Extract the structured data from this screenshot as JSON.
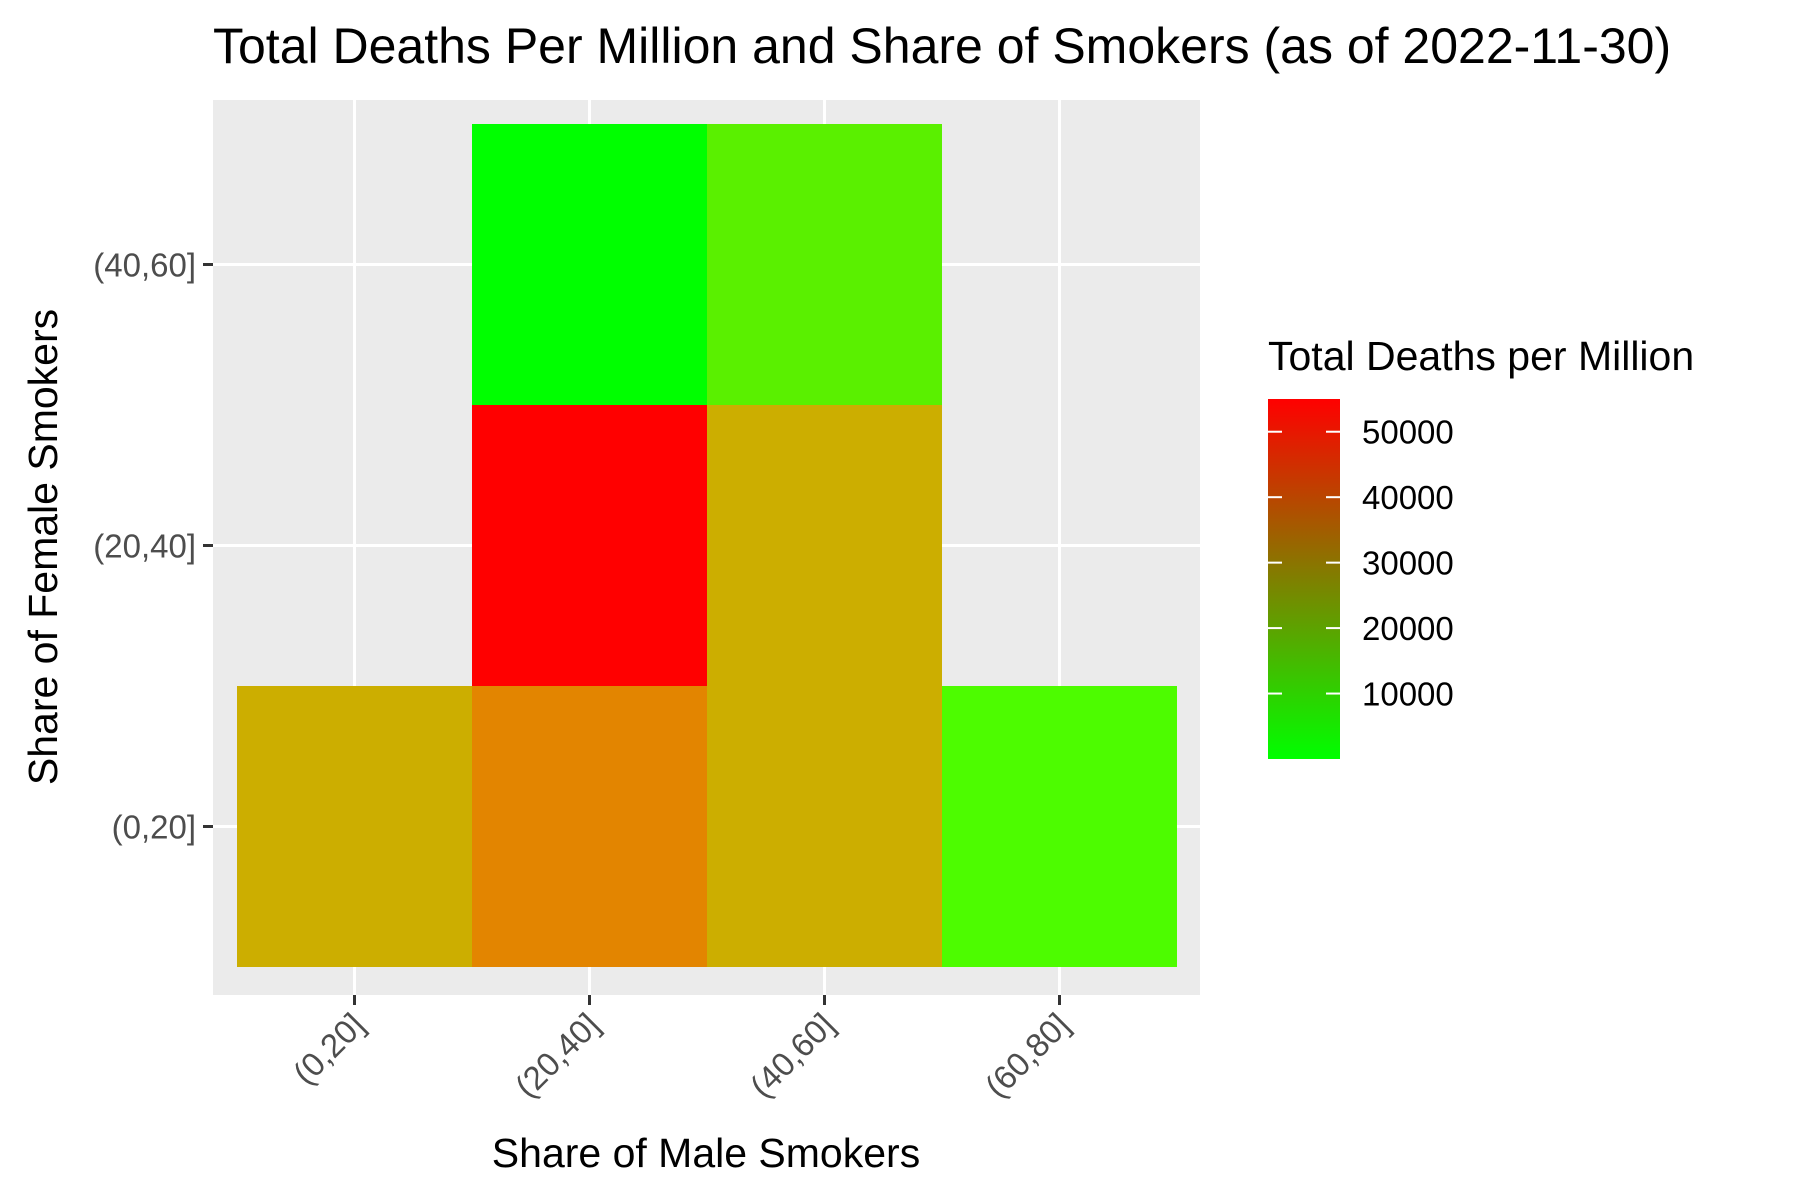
{
  "chart_data": {
    "type": "heatmap",
    "title": "Total Deaths Per Million and Share of Smokers (as of 2022-11-30)",
    "xlabel": "Share of Male Smokers",
    "ylabel": "Share of Female Smokers",
    "x_categories": [
      "(0,20]",
      "(20,40]",
      "(40,60]",
      "(60,80]"
    ],
    "y_categories": [
      "(0,20]",
      "(20,40]",
      "(40,60]"
    ],
    "cells": [
      {
        "x": "(0,20]",
        "y": "(0,20]",
        "value": 30000,
        "color": "#CCAE00"
      },
      {
        "x": "(20,40]",
        "y": "(0,20]",
        "value": 42500,
        "color": "#E38500"
      },
      {
        "x": "(40,60]",
        "y": "(0,20]",
        "value": 30000,
        "color": "#CCAE00"
      },
      {
        "x": "(60,80]",
        "y": "(0,20]",
        "value": 2000,
        "color": "#4DFC00"
      },
      {
        "x": "(20,40]",
        "y": "(20,40]",
        "value": 55000,
        "color": "#FF0000"
      },
      {
        "x": "(40,60]",
        "y": "(20,40]",
        "value": 30000,
        "color": "#CCAE00"
      },
      {
        "x": "(20,40]",
        "y": "(40,60]",
        "value": 0,
        "color": "#00FF00"
      },
      {
        "x": "(40,60]",
        "y": "(40,60]",
        "value": 5000,
        "color": "#5AF000"
      }
    ],
    "legend": {
      "title": "Total Deaths per Million",
      "position": "right",
      "min": 0,
      "max": 55000,
      "low_color": "#00FF00",
      "high_color": "#FF0000",
      "breaks": [
        10000,
        20000,
        30000,
        40000,
        50000
      ],
      "break_labels": [
        "10000",
        "20000",
        "30000",
        "40000",
        "50000"
      ]
    },
    "panel_background": "#EBEBEB",
    "grid": true
  }
}
